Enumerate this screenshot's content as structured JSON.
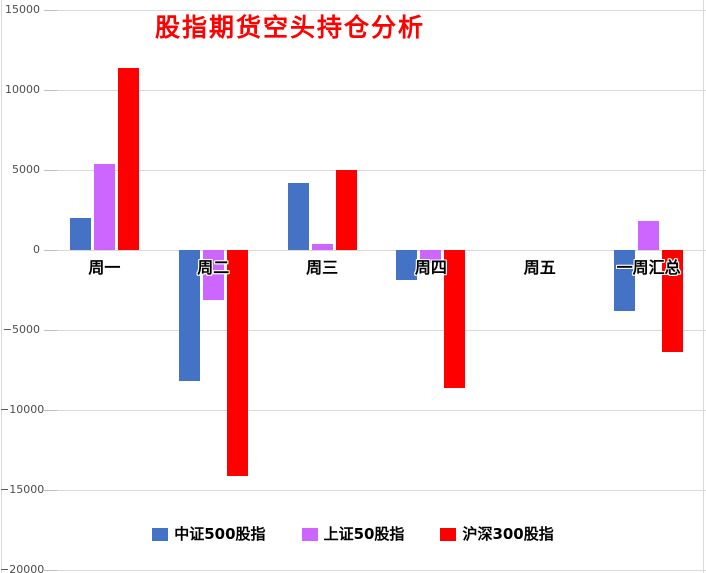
{
  "title": "股指期货空头持仓分析",
  "colors": {
    "title": "#FF0000",
    "gridline": "#D9D9D9",
    "axis_text": "#4D4D4D",
    "series_blue": "#4472C4",
    "series_purple": "#CC66FF",
    "series_red": "#FF0000"
  },
  "chart_data": {
    "type": "bar",
    "title": "股指期货空头持仓分析",
    "categories": [
      "周一",
      "周二",
      "周三",
      "周四",
      "周五",
      "一周汇总"
    ],
    "series": [
      {
        "name": "中证500股指",
        "color": "#4472C4",
        "values": [
          2000,
          -8200,
          4200,
          -1900,
          0,
          -3800
        ]
      },
      {
        "name": "上证50股指",
        "color": "#CC66FF",
        "values": [
          5400,
          -3100,
          400,
          -800,
          0,
          1800
        ]
      },
      {
        "name": "沪深300股指",
        "color": "#FF0000",
        "values": [
          11400,
          -14100,
          5000,
          -8600,
          0,
          -6400
        ]
      }
    ],
    "xlabel": "",
    "ylabel": "",
    "ylim": [
      -20000,
      15000
    ],
    "ytick_interval": 5000,
    "yticks": [
      "15000",
      "10000",
      "5000",
      "0",
      "−5000",
      "−10000",
      "−15000",
      "−20000"
    ],
    "grid": true,
    "legend_position": "bottom"
  }
}
